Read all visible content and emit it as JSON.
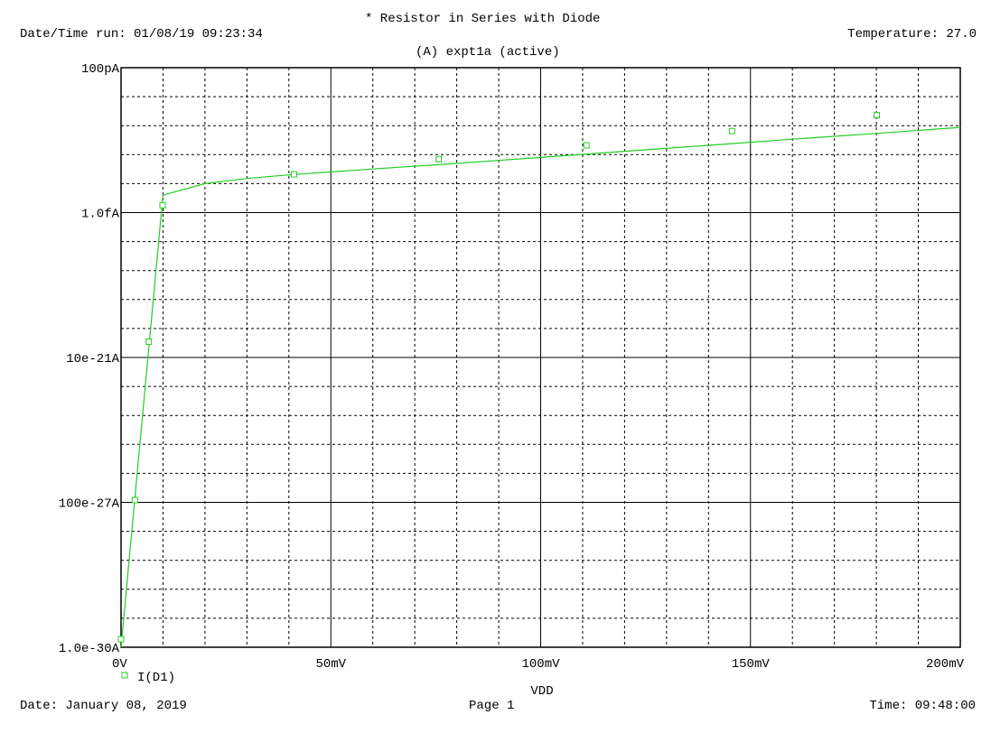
{
  "header": {
    "title": "* Resistor in Series with Diode",
    "datetime_run_label": "Date/Time run: 01/08/19 09:23:34",
    "temperature_label": "Temperature: 27.0",
    "plot_label": "(A) expt1a (active)"
  },
  "footer": {
    "date_label": "Date: January 08, 2019",
    "page_label": "Page 1",
    "time_label": "Time: 09:48:00"
  },
  "chart_data": {
    "type": "line",
    "title": "* Resistor in Series with Diode",
    "xlabel": "VDD",
    "ylabel": "",
    "x_unit": "V",
    "y_unit": "A",
    "y_scale": "log",
    "xlim": [
      0,
      0.2
    ],
    "ylim": [
      1e-30,
      1e-10
    ],
    "x_ticks": [
      {
        "value": 0,
        "label": "0V"
      },
      {
        "value": 0.05,
        "label": "50mV"
      },
      {
        "value": 0.1,
        "label": "100mV"
      },
      {
        "value": 0.15,
        "label": "150mV"
      },
      {
        "value": 0.2,
        "label": "200mV"
      }
    ],
    "y_ticks": [
      {
        "value": 1e-30,
        "label": "1.0e-30A"
      },
      {
        "value": 1e-25,
        "label": "100e-27A"
      },
      {
        "value": 1e-20,
        "label": "10e-21A"
      },
      {
        "value": 1e-15,
        "label": "1.0fA"
      },
      {
        "value": 1e-10,
        "label": "100pA"
      }
    ],
    "grid": true,
    "legend_position": "bottom-left",
    "series": [
      {
        "name": "I(D1)",
        "color": "#22cc22",
        "marker": "square",
        "x": [
          0,
          0.01,
          0.02,
          0.03,
          0.04,
          0.06,
          0.08,
          0.1,
          0.12,
          0.14,
          0.16,
          0.18,
          0.2
        ],
        "y": [
          1e-30,
          4e-15,
          1e-14,
          1.5e-14,
          2e-14,
          3.2e-14,
          5e-14,
          8e-14,
          1.3e-13,
          2.1e-13,
          3.4e-13,
          5.4e-13,
          8.7e-13
        ],
        "marker_x": [
          0,
          0.0033,
          0.0066,
          0.0099,
          0.0412,
          0.0757,
          0.1109,
          0.1456,
          0.1801
        ],
        "marker_y": [
          1.9e-30,
          1.2e-25,
          3.5e-20,
          1.8e-15,
          2.1e-14,
          7e-14,
          2.1e-13,
          6.5e-13,
          2.3e-12
        ]
      }
    ]
  }
}
